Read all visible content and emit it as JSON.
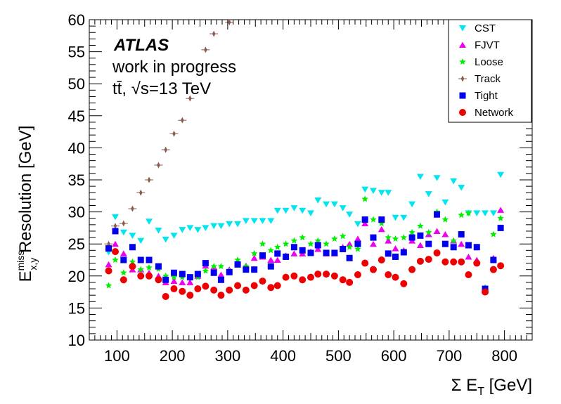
{
  "chart_data": {
    "type": "scatter",
    "xlabel": "Σ E",
    "xlabel_sub": "T",
    "xlabel_unit": " [GeV]",
    "ylabel_main": "E",
    "ylabel_sup": "miss",
    "ylabel_sub": "x,y",
    "ylabel_rest": " Resolution [GeV]",
    "xlim": [
      50,
      850
    ],
    "ylim": [
      10,
      60
    ],
    "x_ticks": [
      100,
      200,
      300,
      400,
      500,
      600,
      700,
      800
    ],
    "y_ticks": [
      10,
      15,
      20,
      25,
      30,
      35,
      40,
      45,
      50,
      55,
      60
    ],
    "annotation": {
      "atlas": "ATLAS",
      "line1": "work in progress",
      "process": "tt̄,",
      "sqrt": "√s=13 TeV"
    },
    "legend_position": "top-right",
    "series": [
      {
        "name": "CST",
        "marker": "triangle-down",
        "color": "#00e5ee",
        "points": [
          [
            85,
            23.7
          ],
          [
            97,
            29.2
          ],
          [
            112,
            26.8
          ],
          [
            128,
            26.3
          ],
          [
            143,
            25.5
          ],
          [
            158,
            28.5
          ],
          [
            175,
            27.1
          ],
          [
            188,
            25.7
          ],
          [
            203,
            26.3
          ],
          [
            218,
            27.2
          ],
          [
            232,
            27.5
          ],
          [
            246,
            27.2
          ],
          [
            260,
            27.5
          ],
          [
            275,
            27.8
          ],
          [
            288,
            27.8
          ],
          [
            303,
            28.1
          ],
          [
            318,
            28.1
          ],
          [
            333,
            28.6
          ],
          [
            348,
            28.6
          ],
          [
            363,
            28.6
          ],
          [
            378,
            28.6
          ],
          [
            390,
            30.2
          ],
          [
            405,
            30.2
          ],
          [
            420,
            30.6
          ],
          [
            435,
            30.2
          ],
          [
            450,
            29.8
          ],
          [
            463,
            31.8
          ],
          [
            478,
            31.2
          ],
          [
            493,
            31.2
          ],
          [
            508,
            30.6
          ],
          [
            520,
            29.6
          ],
          [
            535,
            28.1
          ],
          [
            548,
            33.5
          ],
          [
            563,
            33.3
          ],
          [
            578,
            33.0
          ],
          [
            590,
            33.0
          ],
          [
            603,
            29.1
          ],
          [
            618,
            29.1
          ],
          [
            633,
            31.2
          ],
          [
            648,
            35.5
          ],
          [
            663,
            32.8
          ],
          [
            678,
            35.3
          ],
          [
            693,
            31.5
          ],
          [
            708,
            34.8
          ],
          [
            722,
            33.8
          ],
          [
            735,
            29.8
          ],
          [
            750,
            29.8
          ],
          [
            765,
            29.8
          ],
          [
            780,
            29.8
          ],
          [
            793,
            35.8
          ]
        ]
      },
      {
        "name": "FJVT",
        "marker": "triangle-up",
        "color": "#ee00ee",
        "points": [
          [
            85,
            21.8
          ],
          [
            97,
            25.0
          ],
          [
            112,
            23.5
          ],
          [
            128,
            21.0
          ],
          [
            143,
            21.0
          ],
          [
            158,
            20.5
          ],
          [
            175,
            20.0
          ],
          [
            188,
            19.0
          ],
          [
            203,
            19.2
          ],
          [
            218,
            19.0
          ],
          [
            232,
            19.0
          ],
          [
            246,
            20.0
          ],
          [
            260,
            21.6
          ],
          [
            275,
            21.4
          ],
          [
            288,
            20.2
          ],
          [
            303,
            21.0
          ],
          [
            318,
            22.0
          ],
          [
            333,
            21.6
          ],
          [
            348,
            22.8
          ],
          [
            363,
            23.0
          ],
          [
            378,
            22.5
          ],
          [
            390,
            22.5
          ],
          [
            405,
            23.2
          ],
          [
            420,
            23.5
          ],
          [
            435,
            23.5
          ],
          [
            450,
            23.8
          ],
          [
            463,
            24.2
          ],
          [
            478,
            23.5
          ],
          [
            493,
            23.5
          ],
          [
            508,
            24.5
          ],
          [
            520,
            25.0
          ],
          [
            535,
            25.8
          ],
          [
            548,
            28.2
          ],
          [
            563,
            25.0
          ],
          [
            578,
            27.3
          ],
          [
            590,
            25.5
          ],
          [
            603,
            24.3
          ],
          [
            618,
            24.0
          ],
          [
            633,
            25.5
          ],
          [
            648,
            24.8
          ],
          [
            663,
            26.5
          ],
          [
            678,
            27.0
          ],
          [
            693,
            26.5
          ],
          [
            708,
            25.5
          ],
          [
            722,
            25.0
          ],
          [
            735,
            23.0
          ],
          [
            750,
            22.5
          ],
          [
            765,
            18.2
          ],
          [
            780,
            22.8
          ],
          [
            793,
            30.3
          ]
        ]
      },
      {
        "name": "Loose",
        "marker": "star",
        "color": "#00ee00",
        "points": [
          [
            85,
            18.5
          ],
          [
            97,
            22.5
          ],
          [
            112,
            20.5
          ],
          [
            128,
            22.2
          ],
          [
            143,
            21.0
          ],
          [
            158,
            21.3
          ],
          [
            175,
            21.1
          ],
          [
            188,
            20.0
          ],
          [
            203,
            19.8
          ],
          [
            218,
            19.8
          ],
          [
            232,
            19.8
          ],
          [
            246,
            19.8
          ],
          [
            260,
            20.8
          ],
          [
            275,
            21.5
          ],
          [
            288,
            21.5
          ],
          [
            303,
            20.8
          ],
          [
            318,
            22.5
          ],
          [
            333,
            21.5
          ],
          [
            348,
            23.5
          ],
          [
            363,
            25.0
          ],
          [
            378,
            24.0
          ],
          [
            390,
            24.5
          ],
          [
            405,
            25.0
          ],
          [
            420,
            25.5
          ],
          [
            435,
            26.0
          ],
          [
            450,
            25.0
          ],
          [
            463,
            25.5
          ],
          [
            478,
            25.0
          ],
          [
            493,
            25.8
          ],
          [
            508,
            26.2
          ],
          [
            520,
            24.5
          ],
          [
            535,
            24.2
          ],
          [
            548,
            32.0
          ],
          [
            563,
            28.8
          ],
          [
            578,
            28.2
          ],
          [
            590,
            26.0
          ],
          [
            603,
            25.8
          ],
          [
            618,
            26.0
          ],
          [
            633,
            26.8
          ],
          [
            648,
            27.8
          ],
          [
            663,
            26.8
          ],
          [
            678,
            30.0
          ],
          [
            693,
            28.8
          ],
          [
            708,
            25.5
          ],
          [
            722,
            29.5
          ],
          [
            735,
            29.8
          ],
          [
            750,
            24.5
          ],
          [
            765,
            18.2
          ],
          [
            780,
            26.5
          ],
          [
            793,
            29.0
          ]
        ]
      },
      {
        "name": "Track",
        "marker": "diamond",
        "color": "#8b5a4a",
        "points": [
          [
            85,
            25.0
          ],
          [
            97,
            27.8
          ],
          [
            112,
            28.2
          ],
          [
            128,
            30.5
          ],
          [
            143,
            33.0
          ],
          [
            158,
            35.0
          ],
          [
            175,
            37.3
          ],
          [
            188,
            39.7
          ],
          [
            203,
            42.2
          ],
          [
            218,
            44.3
          ],
          [
            232,
            47.7
          ],
          [
            260,
            55.3
          ],
          [
            275,
            57.8
          ],
          [
            303,
            59.6
          ]
        ]
      },
      {
        "name": "Tight",
        "marker": "square",
        "color": "#0000ee",
        "points": [
          [
            85,
            24.3
          ],
          [
            97,
            27.0
          ],
          [
            112,
            22.5
          ],
          [
            128,
            24.5
          ],
          [
            143,
            22.5
          ],
          [
            158,
            22.5
          ],
          [
            175,
            21.5
          ],
          [
            188,
            19.4
          ],
          [
            203,
            20.5
          ],
          [
            218,
            20.3
          ],
          [
            232,
            19.8
          ],
          [
            246,
            20.3
          ],
          [
            260,
            22.0
          ],
          [
            275,
            20.5
          ],
          [
            288,
            19.4
          ],
          [
            303,
            20.6
          ],
          [
            318,
            21.8
          ],
          [
            333,
            21.0
          ],
          [
            348,
            21.0
          ],
          [
            363,
            23.2
          ],
          [
            378,
            21.5
          ],
          [
            390,
            23.5
          ],
          [
            405,
            23.0
          ],
          [
            420,
            24.5
          ],
          [
            435,
            24.0
          ],
          [
            450,
            23.6
          ],
          [
            463,
            24.8
          ],
          [
            478,
            23.6
          ],
          [
            493,
            23.6
          ],
          [
            508,
            24.2
          ],
          [
            520,
            22.8
          ],
          [
            535,
            25.0
          ],
          [
            548,
            28.8
          ],
          [
            563,
            26.0
          ],
          [
            578,
            28.8
          ],
          [
            590,
            23.5
          ],
          [
            603,
            23.0
          ],
          [
            618,
            23.7
          ],
          [
            633,
            26.0
          ],
          [
            648,
            26.3
          ],
          [
            663,
            25.0
          ],
          [
            678,
            29.6
          ],
          [
            693,
            25.0
          ],
          [
            708,
            24.5
          ],
          [
            722,
            26.5
          ],
          [
            735,
            24.8
          ],
          [
            750,
            24.5
          ],
          [
            765,
            18.0
          ],
          [
            780,
            22.5
          ],
          [
            793,
            27.5
          ]
        ]
      },
      {
        "name": "Network",
        "marker": "circle",
        "color": "#ee0000",
        "points": [
          [
            85,
            20.8
          ],
          [
            97,
            23.8
          ],
          [
            112,
            19.4
          ],
          [
            128,
            21.5
          ],
          [
            143,
            20.0
          ],
          [
            158,
            20.0
          ],
          [
            175,
            19.4
          ],
          [
            188,
            16.8
          ],
          [
            203,
            18.0
          ],
          [
            218,
            17.6
          ],
          [
            232,
            17.0
          ],
          [
            246,
            18.0
          ],
          [
            260,
            18.4
          ],
          [
            275,
            17.8
          ],
          [
            288,
            17.0
          ],
          [
            303,
            17.8
          ],
          [
            318,
            18.5
          ],
          [
            333,
            17.8
          ],
          [
            348,
            18.5
          ],
          [
            363,
            19.2
          ],
          [
            378,
            18.2
          ],
          [
            390,
            18.5
          ],
          [
            405,
            19.8
          ],
          [
            420,
            20.0
          ],
          [
            435,
            19.4
          ],
          [
            450,
            19.8
          ],
          [
            463,
            20.3
          ],
          [
            478,
            20.3
          ],
          [
            493,
            20.0
          ],
          [
            508,
            19.4
          ],
          [
            520,
            19.0
          ],
          [
            535,
            20.2
          ],
          [
            548,
            22.0
          ],
          [
            563,
            21.0
          ],
          [
            578,
            22.5
          ],
          [
            590,
            20.2
          ],
          [
            603,
            19.8
          ],
          [
            618,
            18.8
          ],
          [
            633,
            21.0
          ],
          [
            648,
            22.3
          ],
          [
            663,
            22.6
          ],
          [
            678,
            23.6
          ],
          [
            693,
            22.2
          ],
          [
            708,
            22.2
          ],
          [
            722,
            22.2
          ],
          [
            735,
            20.2
          ],
          [
            750,
            22.0
          ],
          [
            765,
            17.5
          ],
          [
            780,
            21.0
          ],
          [
            793,
            21.6
          ]
        ]
      }
    ]
  }
}
